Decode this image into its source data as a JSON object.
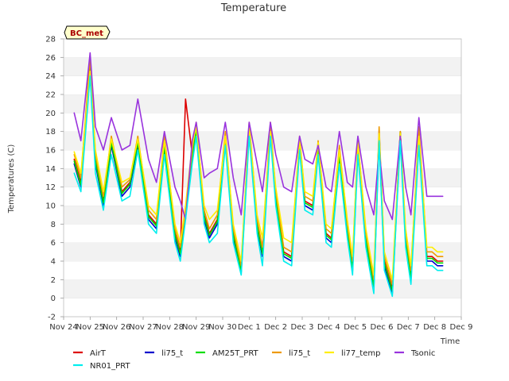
{
  "chart_data": {
    "type": "line",
    "title": "Temperature",
    "xlabel": "Time",
    "ylabel": "Temperatures (C)",
    "station_badge": "BC_met",
    "ylim": [
      -2,
      28
    ],
    "yticks": [
      -2,
      0,
      2,
      4,
      6,
      8,
      10,
      12,
      14,
      16,
      18,
      20,
      22,
      24,
      26,
      28
    ],
    "xlim": [
      0,
      15
    ],
    "xtick_labels": [
      "Nov 24",
      "Nov 25",
      "Nov 26",
      "Nov 27",
      "Nov 28",
      "Nov 29",
      "Nov 30",
      "Dec 1",
      "Dec 2",
      "Dec 3",
      "Dec 4",
      "Dec 5",
      "Dec 6",
      "Dec 7",
      "Dec 8",
      "Dec 9"
    ],
    "grid": "horizontal bands",
    "legend_position": "bottom",
    "series": [
      {
        "name": "AirT",
        "color": "#dd0000",
        "x": [
          0.4,
          0.65,
          1.0,
          1.2,
          1.5,
          1.8,
          2.2,
          2.5,
          2.8,
          3.2,
          3.5,
          3.8,
          4.2,
          4.4,
          4.6,
          4.85,
          5.0,
          5.3,
          5.5,
          5.8,
          6.1,
          6.4,
          6.7,
          7.0,
          7.3,
          7.5,
          7.8,
          8.0,
          8.3,
          8.6,
          8.9,
          9.1,
          9.4,
          9.6,
          9.9,
          10.1,
          10.4,
          10.7,
          10.9,
          11.1,
          11.4,
          11.7,
          11.9,
          12.1,
          12.4,
          12.7,
          12.9,
          13.1,
          13.4,
          13.7,
          13.9,
          14.1,
          14.3
        ],
        "y": [
          15.0,
          12.5,
          25.5,
          15.0,
          10.5,
          17.0,
          11.5,
          12.5,
          17.0,
          9.0,
          8.0,
          16.5,
          7.0,
          5.0,
          21.5,
          15.5,
          18.5,
          9.0,
          7.0,
          8.5,
          17.5,
          7.0,
          3.0,
          18.5,
          8.0,
          5.0,
          18.5,
          11.0,
          5.0,
          4.5,
          17.0,
          10.5,
          10.0,
          16.5,
          7.0,
          6.5,
          15.5,
          7.5,
          3.5,
          16.5,
          6.5,
          1.5,
          18.0,
          4.0,
          1.0,
          18.0,
          6.5,
          2.5,
          18.0,
          4.5,
          4.5,
          4.0,
          4.0
        ]
      },
      {
        "name": "li75_t",
        "color": "#0000cc",
        "x": [
          0.4,
          0.65,
          1.0,
          1.2,
          1.5,
          1.8,
          2.2,
          2.5,
          2.8,
          3.2,
          3.5,
          3.8,
          4.2,
          4.4,
          4.6,
          4.85,
          5.0,
          5.3,
          5.5,
          5.8,
          6.1,
          6.4,
          6.7,
          7.0,
          7.3,
          7.5,
          7.8,
          8.0,
          8.3,
          8.6,
          8.9,
          9.1,
          9.4,
          9.6,
          9.9,
          10.1,
          10.4,
          10.7,
          10.9,
          11.1,
          11.4,
          11.7,
          11.9,
          12.1,
          12.4,
          12.7,
          12.9,
          13.1,
          13.4,
          13.7,
          13.9,
          14.1,
          14.3
        ],
        "y": [
          14.5,
          12.0,
          25.0,
          14.5,
          10.0,
          16.5,
          11.0,
          12.0,
          16.5,
          8.5,
          7.5,
          16.0,
          6.5,
          4.5,
          9.0,
          15.0,
          18.0,
          8.5,
          6.5,
          8.0,
          17.0,
          6.5,
          2.8,
          18.0,
          7.5,
          4.5,
          18.0,
          10.5,
          4.5,
          4.0,
          16.5,
          10.0,
          9.5,
          16.0,
          6.5,
          6.0,
          15.0,
          7.0,
          3.0,
          16.0,
          6.0,
          1.0,
          17.5,
          3.5,
          0.5,
          17.5,
          6.0,
          2.0,
          17.5,
          4.0,
          4.0,
          3.5,
          3.5
        ]
      },
      {
        "name": "AM25T_PRT",
        "color": "#00dd00",
        "x": [
          0.4,
          0.65,
          1.0,
          1.2,
          1.5,
          1.8,
          2.2,
          2.5,
          2.8,
          3.2,
          3.5,
          3.8,
          4.2,
          4.4,
          4.6,
          4.85,
          5.0,
          5.3,
          5.5,
          5.8,
          6.1,
          6.4,
          6.7,
          7.0,
          7.3,
          7.5,
          7.8,
          8.0,
          8.3,
          8.6,
          8.9,
          9.1,
          9.4,
          9.6,
          9.9,
          10.1,
          10.4,
          10.7,
          10.9,
          11.1,
          11.4,
          11.7,
          11.9,
          12.1,
          12.4,
          12.7,
          12.9,
          13.1,
          13.4,
          13.7,
          13.9,
          14.1,
          14.3
        ],
        "y": [
          14.8,
          12.2,
          25.3,
          14.8,
          10.3,
          16.8,
          11.3,
          12.3,
          16.8,
          8.8,
          7.8,
          16.3,
          6.8,
          4.8,
          9.2,
          15.3,
          18.3,
          8.8,
          6.8,
          8.3,
          17.3,
          6.8,
          3.0,
          18.3,
          7.8,
          4.8,
          18.3,
          10.8,
          4.8,
          4.3,
          16.8,
          10.3,
          9.8,
          16.3,
          6.8,
          6.3,
          15.3,
          7.3,
          3.2,
          16.3,
          6.3,
          1.3,
          17.8,
          3.8,
          0.8,
          18.0,
          6.3,
          2.3,
          17.8,
          4.3,
          4.3,
          3.8,
          3.8
        ]
      },
      {
        "name": "li75_t",
        "color": "#ee9900",
        "x": [
          0.4,
          0.65,
          1.0,
          1.2,
          1.5,
          1.8,
          2.2,
          2.5,
          2.8,
          3.2,
          3.5,
          3.8,
          4.2,
          4.4,
          4.6,
          4.85,
          5.0,
          5.3,
          5.5,
          5.8,
          6.1,
          6.4,
          6.7,
          7.0,
          7.3,
          7.5,
          7.8,
          8.0,
          8.3,
          8.6,
          8.9,
          9.1,
          9.4,
          9.6,
          9.9,
          10.1,
          10.4,
          10.7,
          10.9,
          11.1,
          11.4,
          11.7,
          11.9,
          12.1,
          12.4,
          12.7,
          12.9,
          13.1,
          13.4,
          13.7,
          13.9,
          14.1,
          14.3
        ],
        "y": [
          15.5,
          13.0,
          26.0,
          15.5,
          11.0,
          17.5,
          12.0,
          12.8,
          17.5,
          9.5,
          8.5,
          17.5,
          7.5,
          5.5,
          9.5,
          16.0,
          19.0,
          9.5,
          7.5,
          9.0,
          18.0,
          7.5,
          3.5,
          19.0,
          8.5,
          5.5,
          19.0,
          11.5,
          5.5,
          5.0,
          17.5,
          11.0,
          10.5,
          17.0,
          7.5,
          7.0,
          16.5,
          8.0,
          4.0,
          17.0,
          7.0,
          2.0,
          18.5,
          4.5,
          1.5,
          18.0,
          7.0,
          3.0,
          18.5,
          5.0,
          5.0,
          4.5,
          4.5
        ]
      },
      {
        "name": "li77_temp",
        "color": "#ffee00",
        "x": [
          0.4,
          0.65,
          1.0,
          1.2,
          1.5,
          1.8,
          2.2,
          2.5,
          2.8,
          3.2,
          3.5,
          3.8,
          4.2,
          4.4,
          4.6,
          4.85,
          5.0,
          5.3,
          5.5,
          5.8,
          6.1,
          6.4,
          6.7,
          7.0,
          7.3,
          7.5,
          7.8,
          8.0,
          8.3,
          8.6,
          8.9,
          9.1,
          9.4,
          9.6,
          9.9,
          10.1,
          10.4,
          10.7,
          10.9,
          11.1,
          11.4,
          11.7,
          11.9,
          12.1,
          12.4,
          12.7,
          12.9,
          13.1,
          13.4,
          13.7,
          13.9,
          14.1,
          14.3
        ],
        "y": [
          15.8,
          13.5,
          24.5,
          16.0,
          11.5,
          17.2,
          12.5,
          13.0,
          17.2,
          10.0,
          9.0,
          17.0,
          8.0,
          6.0,
          10.0,
          16.5,
          18.5,
          10.0,
          8.5,
          9.5,
          17.5,
          8.0,
          4.0,
          18.5,
          9.0,
          6.5,
          18.0,
          12.0,
          6.5,
          6.0,
          17.0,
          11.5,
          11.0,
          16.8,
          8.0,
          7.5,
          16.0,
          8.5,
          4.5,
          16.8,
          7.5,
          2.5,
          17.8,
          5.0,
          2.0,
          17.8,
          7.5,
          3.5,
          17.5,
          5.5,
          5.5,
          5.0,
          5.0
        ]
      },
      {
        "name": "Tsonic",
        "color": "#9933dd",
        "x": [
          0.4,
          0.65,
          1.0,
          1.2,
          1.5,
          1.8,
          2.2,
          2.5,
          2.8,
          3.2,
          3.5,
          3.8,
          4.2,
          4.4,
          4.6,
          4.85,
          5.0,
          5.3,
          5.5,
          5.8,
          6.1,
          6.4,
          6.7,
          7.0,
          7.3,
          7.5,
          7.8,
          8.0,
          8.3,
          8.6,
          8.9,
          9.1,
          9.4,
          9.6,
          9.9,
          10.1,
          10.4,
          10.7,
          10.9,
          11.1,
          11.4,
          11.7,
          11.9,
          12.1,
          12.4,
          12.7,
          12.9,
          13.1,
          13.4,
          13.7,
          13.9,
          14.1,
          14.3
        ],
        "y": [
          20.0,
          17.0,
          26.5,
          18.5,
          16.0,
          19.5,
          16.0,
          16.5,
          21.5,
          15.0,
          12.5,
          18.0,
          12.0,
          10.5,
          8.5,
          17.0,
          19.0,
          13.0,
          13.5,
          14.0,
          19.0,
          13.0,
          9.0,
          19.0,
          14.5,
          11.5,
          19.0,
          15.5,
          12.0,
          11.5,
          17.5,
          15.0,
          14.5,
          16.5,
          12.0,
          11.5,
          18.0,
          12.5,
          12.0,
          17.5,
          12.0,
          9.0,
          16.0,
          10.5,
          8.5,
          17.5,
          12.0,
          9.0,
          19.5,
          11.0,
          11.0,
          11.0,
          11.0
        ]
      },
      {
        "name": "NR01_PRT",
        "color": "#00eeee",
        "x": [
          0.4,
          0.65,
          1.0,
          1.2,
          1.5,
          1.8,
          2.2,
          2.5,
          2.8,
          3.2,
          3.5,
          3.8,
          4.2,
          4.4,
          4.6,
          4.85,
          5.0,
          5.3,
          5.5,
          5.8,
          6.1,
          6.4,
          6.7,
          7.0,
          7.3,
          7.5,
          7.8,
          8.0,
          8.3,
          8.6,
          8.9,
          9.1,
          9.4,
          9.6,
          9.9,
          10.1,
          10.4,
          10.7,
          10.9,
          11.1,
          11.4,
          11.7,
          11.9,
          12.1,
          12.4,
          12.7,
          12.9,
          13.1,
          13.4,
          13.7,
          13.9,
          14.1,
          14.3
        ],
        "y": [
          13.5,
          11.5,
          24.0,
          13.5,
          9.5,
          15.5,
          10.5,
          11.0,
          16.0,
          8.0,
          7.0,
          15.5,
          6.0,
          4.0,
          8.5,
          14.5,
          17.5,
          8.0,
          6.0,
          7.0,
          16.5,
          6.0,
          2.5,
          17.5,
          7.0,
          3.5,
          17.5,
          10.0,
          4.0,
          3.5,
          16.0,
          9.5,
          9.0,
          15.5,
          6.0,
          5.5,
          14.5,
          6.5,
          2.5,
          15.5,
          5.5,
          0.5,
          17.0,
          3.0,
          0.2,
          17.0,
          5.5,
          1.5,
          16.5,
          3.5,
          3.5,
          3.0,
          3.0
        ]
      }
    ]
  }
}
